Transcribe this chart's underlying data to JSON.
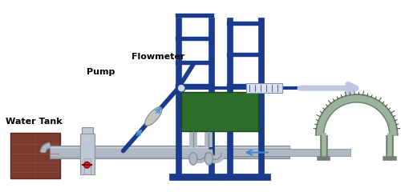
{
  "bg_color": "#ffffff",
  "frame_color": "#1a3a8c",
  "pipe_color": "#b0b8c4",
  "pipe_edge": "#808898",
  "water_tank_color": "#7a3b2e",
  "water_tank_edge": "#5a2b1e",
  "pump_color": "#c0c8d8",
  "pump_edge": "#909098",
  "green_box_color": "#2d6e2d",
  "green_box_edge": "#1a4a1a",
  "arrow_light": "#c0c8e8",
  "arrow_blue": "#4488cc",
  "blue_line_color": "#1a3a8c",
  "arc_color": "#708070",
  "arc_fill": "#90aa90",
  "flowmeter_label": "Flowmeter",
  "pump_label": "Pump",
  "water_tank_label": "Water Tank",
  "label_fontsize": 8,
  "label_fontweight": "bold"
}
